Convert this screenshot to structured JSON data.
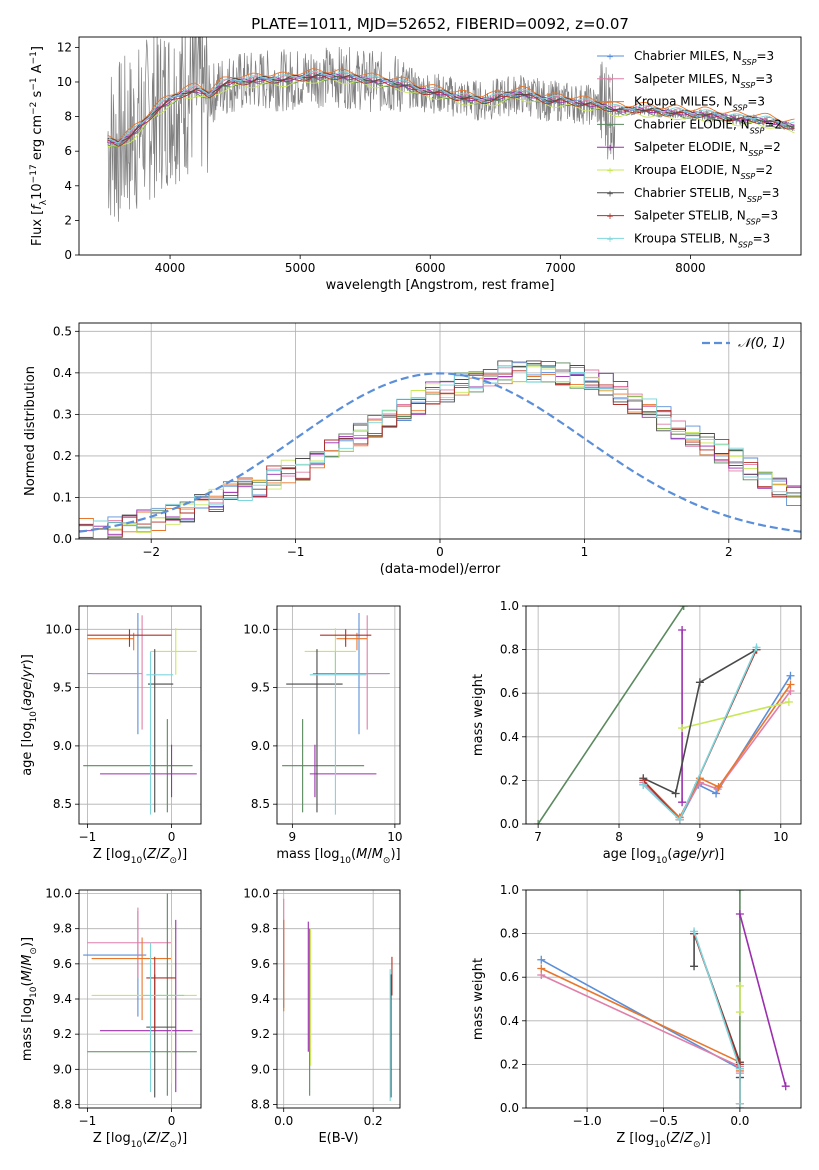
{
  "figure": {
    "title": "PLATE=1011, MJD=52652, FIBERID=0092, z=0.07"
  },
  "colors": {
    "Chabrier MILES": "#5b8fd9",
    "Salpeter MILES": "#e07fa8",
    "Kroupa MILES": "#e8772e",
    "Chabrier ELODIE": "#5a8a5e",
    "Salpeter ELODIE": "#9b2fae",
    "Kroupa ELODIE": "#c8e85a",
    "Chabrier STELIB": "#4a4a4a",
    "Salpeter STELIB": "#b0302a",
    "Kroupa STELIB": "#7ed6dd",
    "data": "#808080",
    "gaussian": "#5b8fd9"
  },
  "chart_data": [
    {
      "id": "spectrum",
      "type": "line",
      "title": "PLATE=1011, MJD=52652, FIBERID=0092, z=0.07",
      "xlabel": "wavelength [Angstrom, rest frame]",
      "ylabel": "Flux [f_λ 10^-17 erg cm^-2 s^-1 A^-1]",
      "xlim": [
        3300,
        8850
      ],
      "ylim": [
        0,
        12.6
      ],
      "xticks": [
        4000,
        5000,
        6000,
        7000,
        8000
      ],
      "yticks": [
        0,
        2,
        4,
        6,
        8,
        10,
        12
      ],
      "grid": false,
      "legend_position": "upper right",
      "legend": [
        {
          "name": "Chabrier MILES",
          "nssp": "3"
        },
        {
          "name": "Salpeter MILES",
          "nssp": "3"
        },
        {
          "name": "Kroupa MILES",
          "nssp": "3"
        },
        {
          "name": "Chabrier ELODIE",
          "nssp": "2"
        },
        {
          "name": "Salpeter ELODIE",
          "nssp": "2"
        },
        {
          "name": "Kroupa ELODIE",
          "nssp": "2"
        },
        {
          "name": "Chabrier STELIB",
          "nssp": "3"
        },
        {
          "name": "Salpeter STELIB",
          "nssp": "3"
        },
        {
          "name": "Kroupa STELIB",
          "nssp": "3"
        }
      ],
      "data_envelope": {
        "x": [
          3500,
          3600,
          3700,
          3800,
          3900,
          4000,
          4100,
          4200,
          4300,
          4400,
          4500,
          4600,
          4700,
          4800,
          4900,
          5000,
          5100,
          5200,
          5300,
          5400,
          5500,
          5600,
          5700,
          5800,
          5900,
          6000,
          6100,
          6200,
          6300,
          6400,
          6500,
          6600,
          6700,
          6800,
          6900,
          7000,
          7100,
          7200,
          7300,
          7400,
          7500,
          7600,
          7700,
          7800,
          7900,
          8000,
          8100,
          8200,
          8300,
          8400,
          8500,
          8600,
          8700,
          8800
        ],
        "y": [
          6.6,
          6.4,
          6.9,
          7.6,
          8.4,
          8.9,
          9.3,
          9.5,
          9.2,
          9.8,
          10.0,
          10.0,
          10.1,
          10.1,
          10.1,
          10.2,
          10.3,
          10.3,
          10.3,
          10.2,
          10.1,
          10.0,
          9.9,
          9.8,
          9.5,
          9.4,
          9.3,
          9.1,
          9.0,
          8.9,
          9.0,
          9.2,
          9.3,
          9.1,
          8.9,
          8.9,
          8.8,
          8.7,
          8.6,
          8.4,
          8.3,
          8.4,
          8.3,
          8.2,
          8.2,
          8.1,
          8.1,
          8.0,
          7.9,
          7.8,
          7.8,
          7.7,
          7.5,
          7.4
        ]
      }
    },
    {
      "id": "residuals",
      "type": "histogram",
      "xlabel": "(data-model)/error",
      "ylabel": "Normed distribution",
      "xlim": [
        -2.5,
        2.5
      ],
      "ylim": [
        0,
        0.52
      ],
      "xticks": [
        -2,
        -1,
        0,
        1,
        2
      ],
      "yticks": [
        0.0,
        0.1,
        0.2,
        0.3,
        0.4,
        0.5
      ],
      "grid": true,
      "legend_position": "upper right",
      "legend": [
        {
          "name": "N(0,1)",
          "style": "dashed"
        }
      ],
      "bin_width": 0.1,
      "bin_start": -2.5,
      "base_values": [
        0.02,
        0.02,
        0.03,
        0.03,
        0.04,
        0.05,
        0.06,
        0.07,
        0.08,
        0.09,
        0.11,
        0.12,
        0.13,
        0.15,
        0.16,
        0.17,
        0.19,
        0.21,
        0.23,
        0.25,
        0.27,
        0.29,
        0.31,
        0.33,
        0.35,
        0.36,
        0.37,
        0.38,
        0.39,
        0.4,
        0.4,
        0.4,
        0.4,
        0.4,
        0.39,
        0.38,
        0.37,
        0.35,
        0.33,
        0.31,
        0.29,
        0.27,
        0.25,
        0.23,
        0.21,
        0.19,
        0.17,
        0.15,
        0.13,
        0.11
      ]
    },
    {
      "id": "age_vs_Z",
      "type": "errorbar",
      "xlabel": "Z [log10(Z/Z_sun)]",
      "ylabel": "age  [log10(age/yr)]",
      "xlim": [
        -1.1,
        0.35
      ],
      "ylim": [
        8.33,
        10.2
      ],
      "xticks": [
        -1,
        0
      ],
      "yticks": [
        8.5,
        9.0,
        9.5,
        10.0
      ],
      "grid": true,
      "points": [
        {
          "model": "Chabrier MILES",
          "x": -0.4,
          "xerr": [
            0.6,
            0.0
          ],
          "y": 9.62,
          "yerr": [
            0.52,
            0.52
          ]
        },
        {
          "model": "Salpeter MILES",
          "x": -0.35,
          "xerr": [
            0.6,
            0.0
          ],
          "y": 9.62,
          "yerr": [
            0.48,
            0.5
          ]
        },
        {
          "model": "Kroupa MILES",
          "x": -0.45,
          "xerr": [
            0.55,
            0.0
          ],
          "y": 9.92,
          "yerr": [
            0.1,
            0.05
          ]
        },
        {
          "model": "Chabrier ELODIE",
          "x": -0.05,
          "xerr": [
            1.0,
            0.3
          ],
          "y": 8.83,
          "yerr": [
            0.4,
            0.4
          ]
        },
        {
          "model": "Salpeter ELODIE",
          "x": 0.0,
          "xerr": [
            0.85,
            0.3
          ],
          "y": 8.76,
          "yerr": [
            0.2,
            0.25
          ]
        },
        {
          "model": "Kroupa ELODIE",
          "x": 0.05,
          "xerr": [
            0.3,
            0.25
          ],
          "y": 9.81,
          "yerr": [
            0.2,
            0.2
          ]
        },
        {
          "model": "Chabrier STELIB",
          "x": -0.2,
          "xerr": [
            0.08,
            0.22
          ],
          "y": 9.53,
          "yerr": [
            1.1,
            0.3
          ]
        },
        {
          "model": "Salpeter STELIB",
          "x": -0.5,
          "xerr": [
            0.5,
            0.5
          ],
          "y": 9.95,
          "yerr": [
            0.1,
            0.05
          ]
        },
        {
          "model": "Kroupa STELIB",
          "x": -0.25,
          "xerr": [
            0.05,
            0.27
          ],
          "y": 9.61,
          "yerr": [
            1.2,
            0.2
          ]
        }
      ]
    },
    {
      "id": "age_vs_mass",
      "type": "errorbar",
      "xlabel": "mass [log10(M/M_sun)]",
      "ylabel": "",
      "xlim": [
        8.85,
        10.05
      ],
      "ylim": [
        8.33,
        10.2
      ],
      "xticks": [
        9,
        10
      ],
      "yticks": [
        8.5,
        9.0,
        9.5,
        10.0
      ],
      "grid": true,
      "points": [
        {
          "model": "Chabrier MILES",
          "x": 9.65,
          "xerr": [
            0.45,
            0.3
          ],
          "y": 9.62,
          "yerr": [
            0.52,
            0.52
          ]
        },
        {
          "model": "Salpeter MILES",
          "x": 9.73,
          "xerr": [
            0.1,
            0.2
          ],
          "y": 9.62,
          "yerr": [
            0.48,
            0.5
          ]
        },
        {
          "model": "Kroupa MILES",
          "x": 9.63,
          "xerr": [
            0.2,
            0.1
          ],
          "y": 9.92,
          "yerr": [
            0.1,
            0.05
          ]
        },
        {
          "model": "Chabrier ELODIE",
          "x": 9.1,
          "xerr": [
            0.2,
            0.6
          ],
          "y": 8.83,
          "yerr": [
            0.4,
            0.4
          ]
        },
        {
          "model": "Salpeter ELODIE",
          "x": 9.22,
          "xerr": [
            0.05,
            0.6
          ],
          "y": 8.76,
          "yerr": [
            0.2,
            0.25
          ]
        },
        {
          "model": "Kroupa ELODIE",
          "x": 9.42,
          "xerr": [
            0.3,
            0.2
          ],
          "y": 9.81,
          "yerr": [
            0.2,
            0.2
          ]
        },
        {
          "model": "Chabrier STELIB",
          "x": 9.24,
          "xerr": [
            0.3,
            0.25
          ],
          "y": 9.53,
          "yerr": [
            1.1,
            0.3
          ]
        },
        {
          "model": "Salpeter STELIB",
          "x": 9.52,
          "xerr": [
            0.25,
            0.25
          ],
          "y": 9.95,
          "yerr": [
            0.1,
            0.05
          ]
        },
        {
          "model": "Kroupa STELIB",
          "x": 9.42,
          "xerr": [
            0.25,
            0.3
          ],
          "y": 9.61,
          "yerr": [
            1.2,
            0.2
          ]
        }
      ]
    },
    {
      "id": "mass_weight_vs_age",
      "type": "line",
      "xlabel": "age  [log10(age/yr)]",
      "ylabel": "mass weight",
      "xlim": [
        6.85,
        10.25
      ],
      "ylim": [
        0,
        1.0
      ],
      "xticks": [
        7,
        8,
        9,
        10
      ],
      "yticks": [
        0.0,
        0.2,
        0.4,
        0.6,
        0.8,
        1.0
      ],
      "grid": true,
      "series": [
        {
          "model": "Chabrier MILES",
          "x": [
            8.3,
            8.75,
            8.98,
            9.2,
            10.12
          ],
          "y": [
            0.18,
            0.02,
            0.18,
            0.14,
            0.68
          ]
        },
        {
          "model": "Salpeter MILES",
          "x": [
            8.3,
            8.75,
            9.0,
            9.22,
            10.12
          ],
          "y": [
            0.19,
            0.03,
            0.19,
            0.16,
            0.61
          ]
        },
        {
          "model": "Kroupa MILES",
          "x": [
            8.3,
            8.75,
            9.0,
            9.23,
            10.12
          ],
          "y": [
            0.2,
            0.03,
            0.21,
            0.17,
            0.64
          ]
        },
        {
          "model": "Chabrier ELODIE",
          "x": [
            7.0,
            8.8
          ],
          "y": [
            0.0,
            1.0
          ]
        },
        {
          "model": "Salpeter ELODIE",
          "x": [
            8.78,
            8.78
          ],
          "y": [
            0.89,
            0.1
          ]
        },
        {
          "model": "Kroupa ELODIE",
          "x": [
            8.78,
            10.1
          ],
          "y": [
            0.44,
            0.56
          ]
        },
        {
          "model": "Chabrier STELIB",
          "x": [
            8.3,
            8.7,
            9.0,
            9.7
          ],
          "y": [
            0.21,
            0.14,
            0.65,
            0.8
          ]
        },
        {
          "model": "Salpeter STELIB",
          "x": [
            8.3,
            8.75,
            9.7
          ],
          "y": [
            0.2,
            0.02,
            0.8
          ]
        },
        {
          "model": "Kroupa STELIB",
          "x": [
            8.3,
            8.75,
            9.7
          ],
          "y": [
            0.18,
            0.02,
            0.81
          ]
        }
      ]
    },
    {
      "id": "mass_vs_Z",
      "type": "errorbar",
      "xlabel": "Z [log10(Z/Z_sun)]",
      "ylabel": "mass [log10(M/M_sun)]",
      "xlim": [
        -1.1,
        0.35
      ],
      "ylim": [
        8.78,
        10.02
      ],
      "xticks": [
        -1,
        0
      ],
      "yticks": [
        8.8,
        9.0,
        9.2,
        9.4,
        9.6,
        9.8,
        10.0
      ],
      "grid": true,
      "points": [
        {
          "model": "Chabrier MILES",
          "x": -0.4,
          "xerr": [
            0.65,
            0.1
          ],
          "y": 9.65,
          "yerr": [
            0.35,
            0.25
          ]
        },
        {
          "model": "Salpeter MILES",
          "x": -0.4,
          "xerr": [
            0.6,
            0.4
          ],
          "y": 9.72,
          "yerr": [
            0.2,
            0.2
          ]
        },
        {
          "model": "Kroupa MILES",
          "x": -0.35,
          "xerr": [
            0.6,
            0.35
          ],
          "y": 9.63,
          "yerr": [
            0.35,
            0.12
          ]
        },
        {
          "model": "Chabrier ELODIE",
          "x": -0.05,
          "xerr": [
            0.95,
            0.35
          ],
          "y": 9.1,
          "yerr": [
            0.25,
            0.9
          ]
        },
        {
          "model": "Salpeter ELODIE",
          "x": 0.05,
          "xerr": [
            0.9,
            0.2
          ],
          "y": 9.22,
          "yerr": [
            0.35,
            0.63
          ]
        },
        {
          "model": "Kroupa ELODIE",
          "x": 0.0,
          "xerr": [
            0.95,
            0.3
          ],
          "y": 9.42,
          "yerr": [
            0.5,
            0.4
          ]
        },
        {
          "model": "Chabrier STELIB",
          "x": -0.2,
          "xerr": [
            0.1,
            0.25
          ],
          "y": 9.24,
          "yerr": [
            0.4,
            0.3
          ]
        },
        {
          "model": "Salpeter STELIB",
          "x": -0.2,
          "xerr": [
            0.1,
            0.25
          ],
          "y": 9.52,
          "yerr": [
            0.3,
            0.12
          ]
        },
        {
          "model": "Kroupa STELIB",
          "x": -0.25,
          "xerr": [
            0.1,
            0.4
          ],
          "y": 9.42,
          "yerr": [
            0.55,
            0.3
          ]
        }
      ]
    },
    {
      "id": "mass_vs_ebv",
      "type": "errorbar",
      "xlabel": "E(B-V)",
      "ylabel": "",
      "xlim": [
        -0.015,
        0.26
      ],
      "ylim": [
        8.78,
        10.02
      ],
      "xticks": [
        0.0,
        0.2
      ],
      "yticks": [
        8.8,
        9.0,
        9.2,
        9.4,
        9.6,
        9.8,
        10.0
      ],
      "grid": true,
      "points": [
        {
          "model": "Chabrier MILES",
          "x": 0.0,
          "xerr": [
            0,
            0
          ],
          "y": 9.65,
          "yerr": [
            0.3,
            0.2
          ]
        },
        {
          "model": "Salpeter MILES",
          "x": 0.0,
          "xerr": [
            0,
            0
          ],
          "y": 9.72,
          "yerr": [
            0.2,
            0.25
          ]
        },
        {
          "model": "Kroupa MILES",
          "x": 0.0,
          "xerr": [
            0,
            0
          ],
          "y": 9.63,
          "yerr": [
            0.3,
            0.22
          ]
        },
        {
          "model": "Chabrier ELODIE",
          "x": 0.058,
          "xerr": [
            0,
            0
          ],
          "y": 9.1,
          "yerr": [
            0.25,
            0.7
          ]
        },
        {
          "model": "Salpeter ELODIE",
          "x": 0.055,
          "xerr": [
            0,
            0
          ],
          "y": 9.22,
          "yerr": [
            0.12,
            0.62
          ]
        },
        {
          "model": "Kroupa ELODIE",
          "x": 0.06,
          "xerr": [
            0,
            0
          ],
          "y": 9.42,
          "yerr": [
            0.4,
            0.38
          ]
        },
        {
          "model": "Chabrier STELIB",
          "x": 0.24,
          "xerr": [
            0,
            0
          ],
          "y": 9.24,
          "yerr": [
            0.4,
            0.3
          ]
        },
        {
          "model": "Salpeter STELIB",
          "x": 0.242,
          "xerr": [
            0,
            0
          ],
          "y": 9.52,
          "yerr": [
            0.1,
            0.12
          ]
        },
        {
          "model": "Kroupa STELIB",
          "x": 0.238,
          "xerr": [
            0,
            0
          ],
          "y": 9.42,
          "yerr": [
            0.6,
            0.15
          ]
        }
      ]
    },
    {
      "id": "mass_weight_vs_Z",
      "type": "line",
      "xlabel": "Z [log10(Z/Z_sun)]",
      "ylabel": "mass weight",
      "xlim": [
        -1.4,
        0.4
      ],
      "ylim": [
        0,
        1.0
      ],
      "xticks": [
        -1.0,
        -0.5,
        0.0
      ],
      "yticks": [
        0.0,
        0.2,
        0.4,
        0.6,
        0.8,
        1.0
      ],
      "grid": true,
      "series": [
        {
          "model": "Chabrier MILES",
          "x": [
            -1.3,
            0.0,
            0.0
          ],
          "y": [
            0.68,
            0.18,
            0.14
          ]
        },
        {
          "model": "Salpeter MILES",
          "x": [
            -1.3,
            0.0,
            0.0
          ],
          "y": [
            0.61,
            0.19,
            0.16
          ]
        },
        {
          "model": "Kroupa MILES",
          "x": [
            -1.3,
            0.0,
            0.0
          ],
          "y": [
            0.64,
            0.21,
            0.17
          ]
        },
        {
          "model": "Chabrier ELODIE",
          "x": [
            0.0,
            0.0
          ],
          "y": [
            0.0,
            1.0
          ]
        },
        {
          "model": "Salpeter ELODIE",
          "x": [
            0.0,
            0.3
          ],
          "y": [
            0.89,
            0.1
          ]
        },
        {
          "model": "Kroupa ELODIE",
          "x": [
            0.0,
            0.0
          ],
          "y": [
            0.44,
            0.56
          ]
        },
        {
          "model": "Chabrier STELIB",
          "x": [
            -0.3,
            -0.3,
            0.0,
            0.0
          ],
          "y": [
            0.65,
            0.8,
            0.21,
            0.14
          ]
        },
        {
          "model": "Salpeter STELIB",
          "x": [
            -0.3,
            0.0,
            0.0
          ],
          "y": [
            0.8,
            0.2,
            0.02
          ]
        },
        {
          "model": "Kroupa STELIB",
          "x": [
            -0.3,
            0.0,
            0.0
          ],
          "y": [
            0.81,
            0.18,
            0.02
          ]
        }
      ]
    }
  ]
}
